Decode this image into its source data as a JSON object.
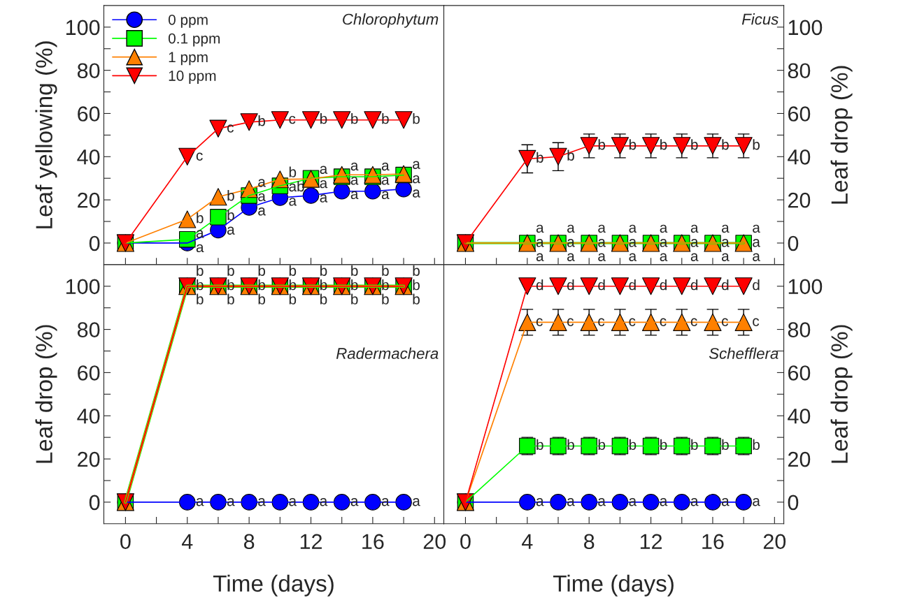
{
  "chart_data": [
    {
      "type": "line",
      "title": "Chlorophytum",
      "ylabel": "Leaf yellowing (%)",
      "x": [
        0,
        4,
        6,
        8,
        10,
        12,
        14,
        16,
        18
      ],
      "xlim": [
        -1.4,
        20.6
      ],
      "ylim": [
        -10,
        110
      ],
      "xticks": [
        0,
        {
          "value": 2,
          "label": null
        },
        4,
        {
          "value": 6,
          "label": null
        },
        8,
        {
          "value": 10,
          "label": null
        },
        12,
        {
          "value": 14,
          "label": null
        },
        16,
        {
          "value": 18,
          "label": null
        },
        20
      ],
      "yticks": [
        0,
        {
          "value": 10,
          "label": null
        },
        20,
        {
          "value": 30,
          "label": null
        },
        40,
        {
          "value": 50,
          "label": null
        },
        60,
        {
          "value": 70,
          "label": null
        },
        80,
        {
          "value": 90,
          "label": null
        },
        100
      ],
      "tick_labels": "y",
      "legend": "top left",
      "series": [
        {
          "name": "0 ppm",
          "color": "#0000ff",
          "marker": "circle",
          "values": [
            0,
            0,
            6,
            16.5,
            21,
            22,
            24,
            24,
            25
          ],
          "value_labels": [
            null,
            "a",
            "a",
            "a",
            "a",
            "a",
            "a",
            "a",
            "a"
          ]
        },
        {
          "name": "0.1 ppm",
          "color": "#00ff00",
          "marker": "square",
          "values": [
            0,
            1.7,
            12,
            22,
            26.5,
            30,
            30.7,
            30.7,
            31.5
          ],
          "value_labels": [
            null,
            "a",
            "b",
            "a",
            "ab",
            "a",
            "a",
            "a",
            "a"
          ]
        },
        {
          "name": "1 ppm",
          "color": "#ff8000",
          "marker": "triangle",
          "values": [
            0,
            11,
            21.4,
            25,
            29.5,
            29.7,
            31.6,
            31.6,
            32
          ],
          "value_labels": [
            null,
            "b",
            "b",
            "a",
            "b",
            "a",
            "a",
            "a",
            "a"
          ]
        },
        {
          "name": "10 ppm",
          "color": "#ff0000",
          "marker": "triangle-down",
          "values": [
            0,
            40,
            53,
            56,
            57,
            57,
            57,
            57,
            57
          ],
          "value_labels": [
            null,
            "c",
            "c",
            "b",
            "c",
            "b",
            "b",
            "b",
            "b"
          ]
        }
      ]
    },
    {
      "type": "line",
      "title": "Ficus",
      "ylabel": "Leaf drop (%)",
      "x": [
        0,
        4,
        6,
        8,
        10,
        12,
        14,
        16,
        18
      ],
      "xlim": [
        -1.4,
        20.6
      ],
      "ylim": [
        -10,
        110
      ],
      "xticks": [
        0,
        {
          "value": 2,
          "label": null
        },
        4,
        {
          "value": 6,
          "label": null
        },
        8,
        {
          "value": 10,
          "label": null
        },
        12,
        {
          "value": 14,
          "label": null
        },
        16,
        {
          "value": 18,
          "label": null
        },
        20
      ],
      "yticks": [
        0,
        {
          "value": 10,
          "label": null
        },
        20,
        {
          "value": 30,
          "label": null
        },
        40,
        {
          "value": 50,
          "label": null
        },
        60,
        {
          "value": 70,
          "label": null
        },
        80,
        {
          "value": 90,
          "label": null
        },
        100
      ],
      "tick_labels": "y",
      "annotations": [
        {
          "text": "a",
          "x": 4,
          "y": 0
        },
        {
          "text": "a",
          "x": 6,
          "y": 0
        },
        {
          "text": "a",
          "x": 8,
          "y": 0
        },
        {
          "text": "a",
          "x": 10,
          "y": 0
        },
        {
          "text": "a",
          "x": 12,
          "y": 0
        },
        {
          "text": "a",
          "x": 14,
          "y": 0
        },
        {
          "text": "a",
          "x": 16,
          "y": 0
        },
        {
          "text": "a",
          "x": 18,
          "y": 0
        }
      ],
      "series": [
        {
          "color": "#00ff00",
          "marker": "square",
          "values": [
            0,
            0,
            0,
            0,
            0,
            0,
            0,
            0,
            0
          ],
          "value_labels": [
            null,
            "a",
            "a",
            "a",
            "a",
            "a",
            "a",
            "a",
            "a"
          ]
        },
        {
          "color": "#ff8000",
          "marker": "triangle",
          "values": [
            0,
            0,
            0,
            0,
            0,
            0,
            0,
            0,
            0
          ],
          "value_labels": [
            null,
            "a",
            "a",
            "a",
            "a",
            "a",
            "a",
            "a",
            "a"
          ]
        },
        {
          "color": "#ff0000",
          "marker": "triangle-down",
          "values": [
            0,
            39,
            40,
            45,
            45,
            45,
            45,
            45,
            45
          ],
          "errors": [
            null,
            6.5,
            6.5,
            5.5,
            5.5,
            5.5,
            5.5,
            5.5,
            5.5
          ],
          "value_labels": [
            null,
            "b",
            "b",
            "b",
            "b",
            "b",
            "b",
            "b",
            "b"
          ]
        }
      ]
    },
    {
      "type": "line",
      "title": "Radermachera",
      "xlabel": "Time (days)",
      "ylabel": "Leaf drop (%)",
      "x": [
        0,
        4,
        6,
        8,
        10,
        12,
        14,
        16,
        18
      ],
      "xlim": [
        -1.4,
        20.6
      ],
      "ylim": [
        -10,
        110
      ],
      "xticks": [
        0,
        {
          "value": 2,
          "label": null
        },
        4,
        {
          "value": 6,
          "label": null
        },
        8,
        {
          "value": 10,
          "label": null
        },
        12,
        {
          "value": 14,
          "label": null
        },
        16,
        {
          "value": 18,
          "label": null
        },
        20
      ],
      "yticks": [
        0,
        {
          "value": 10,
          "label": null
        },
        20,
        {
          "value": 30,
          "label": null
        },
        40,
        {
          "value": 50,
          "label": null
        },
        60,
        {
          "value": 70,
          "label": null
        },
        80,
        {
          "value": 90,
          "label": null
        },
        100
      ],
      "series": [
        {
          "color": "#0000ff",
          "marker": "circle",
          "values": [
            0,
            0,
            0,
            0,
            0,
            0,
            0,
            0,
            0
          ],
          "value_labels": [
            null,
            "a",
            "a",
            "a",
            "a",
            "a",
            "a",
            "a",
            "a"
          ]
        },
        {
          "color": "#00ff00",
          "marker": "square",
          "values": [
            0,
            100,
            100,
            100,
            100,
            100,
            100,
            100,
            100
          ],
          "value_labels": [
            null,
            "b",
            "b",
            "b",
            "b",
            "b",
            "b",
            "b",
            "b"
          ]
        },
        {
          "color": "#ff8000",
          "marker": "triangle",
          "values": [
            0,
            100,
            100,
            100,
            100,
            100,
            100,
            100,
            100
          ],
          "value_labels": [
            null,
            "b",
            "b",
            "b",
            "b",
            "b",
            "b",
            "b",
            "b"
          ]
        },
        {
          "color": "#ff0000",
          "marker": "triangle-down",
          "values": [
            0,
            100,
            100,
            100,
            100,
            100,
            100,
            100,
            100
          ],
          "value_labels": [
            null,
            "b",
            "b",
            "b",
            "b",
            "b",
            "b",
            "b",
            "b"
          ]
        }
      ]
    },
    {
      "type": "line",
      "title": "Schefflera",
      "xlabel": "Time (days)",
      "ylabel": "Leaf drop (%)",
      "x": [
        0,
        4,
        6,
        8,
        10,
        12,
        14,
        16,
        18
      ],
      "xlim": [
        -1.4,
        20.6
      ],
      "ylim": [
        -10,
        110
      ],
      "xticks": [
        0,
        {
          "value": 2,
          "label": null
        },
        4,
        {
          "value": 6,
          "label": null
        },
        8,
        {
          "value": 10,
          "label": null
        },
        12,
        {
          "value": 14,
          "label": null
        },
        16,
        {
          "value": 18,
          "label": null
        },
        20
      ],
      "yticks": [
        0,
        {
          "value": 10,
          "label": null
        },
        20,
        {
          "value": 30,
          "label": null
        },
        40,
        {
          "value": 50,
          "label": null
        },
        60,
        {
          "value": 70,
          "label": null
        },
        80,
        {
          "value": 90,
          "label": null
        },
        100
      ],
      "series": [
        {
          "color": "#0000ff",
          "marker": "circle",
          "values": [
            0,
            0,
            0,
            0,
            0,
            0,
            0,
            0,
            0
          ],
          "value_labels": [
            null,
            "a",
            "a",
            "a",
            "a",
            "a",
            "a",
            "a",
            "a"
          ]
        },
        {
          "color": "#00ff00",
          "marker": "square",
          "values": [
            0,
            26,
            26,
            26,
            26,
            26,
            26,
            26,
            26
          ],
          "errors": [
            null,
            4,
            4,
            4,
            4,
            4,
            4,
            4,
            4
          ],
          "value_labels": [
            null,
            "b",
            "b",
            "b",
            "b",
            "b",
            "b",
            "b",
            "b"
          ]
        },
        {
          "color": "#ff8000",
          "marker": "triangle",
          "values": [
            0,
            83.3,
            83.3,
            83.3,
            83.3,
            83.3,
            83.3,
            83.3,
            83.3
          ],
          "errors": [
            null,
            6,
            6,
            6,
            6,
            6,
            6,
            6,
            6
          ],
          "value_labels": [
            null,
            "c",
            "c",
            "c",
            "c",
            "c",
            "c",
            "c",
            "c"
          ]
        },
        {
          "color": "#ff0000",
          "marker": "triangle-down",
          "values": [
            0,
            100,
            100,
            100,
            100,
            100,
            100,
            100,
            100
          ],
          "value_labels": [
            null,
            "d",
            "d",
            "d",
            "d",
            "d",
            "d",
            "d",
            "d"
          ]
        }
      ]
    }
  ]
}
